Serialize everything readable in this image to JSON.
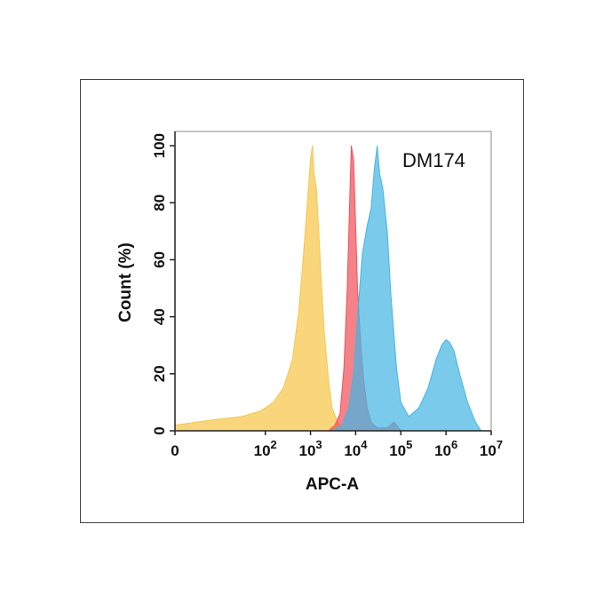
{
  "chart_data": {
    "type": "area",
    "title": "",
    "annotation": "DM174",
    "xlabel": "APC-A",
    "ylabel": "Count  (%)",
    "xscale": "log",
    "xlim": [
      1,
      10000000
    ],
    "ylim": [
      0,
      105
    ],
    "x_ticks": [
      {
        "value": 1,
        "base": "0",
        "exp": ""
      },
      {
        "value": 100,
        "base": "10",
        "exp": "2"
      },
      {
        "value": 1000,
        "base": "10",
        "exp": "3"
      },
      {
        "value": 10000,
        "base": "10",
        "exp": "4"
      },
      {
        "value": 100000,
        "base": "10",
        "exp": "5"
      },
      {
        "value": 1000000,
        "base": "10",
        "exp": "6"
      },
      {
        "value": 10000000,
        "base": "10",
        "exp": "7"
      }
    ],
    "y_ticks": [
      0,
      20,
      40,
      60,
      80,
      100
    ],
    "grid": false,
    "legend": "none",
    "series": [
      {
        "color": "#f7c64a",
        "x": [
          1,
          8,
          30,
          80,
          150,
          250,
          400,
          550,
          700,
          850,
          1000,
          1100,
          1200,
          1350,
          1500,
          1700,
          2000,
          2500,
          3000,
          4000,
          5000,
          6500
        ],
        "y": [
          2,
          4,
          5,
          7,
          10,
          15,
          25,
          42,
          62,
          80,
          95,
          100,
          90,
          85,
          72,
          55,
          35,
          18,
          8,
          3,
          1,
          0
        ]
      },
      {
        "color": "#f0525a",
        "x": [
          2500,
          3500,
          4500,
          5500,
          6500,
          7500,
          8000,
          9000,
          10000,
          11000,
          13000,
          15000,
          18000,
          22000,
          30000,
          50000,
          70000,
          80000,
          100000
        ],
        "y": [
          0,
          2,
          6,
          22,
          50,
          85,
          100,
          95,
          72,
          50,
          30,
          18,
          8,
          3,
          1,
          1,
          3,
          2,
          0
        ]
      },
      {
        "color": "#45b6e3",
        "x": [
          3000,
          5000,
          7000,
          9000,
          11000,
          14000,
          18000,
          22000,
          26000,
          30000,
          34000,
          40000,
          50000,
          60000,
          80000,
          100000,
          150000,
          250000,
          400000,
          600000,
          800000,
          1000000,
          1200000,
          1500000,
          2000000,
          3000000,
          4500000,
          6000000
        ],
        "y": [
          0,
          2,
          8,
          20,
          40,
          62,
          72,
          78,
          92,
          100,
          90,
          85,
          70,
          48,
          22,
          10,
          5,
          8,
          15,
          25,
          30,
          32,
          31,
          28,
          20,
          10,
          3,
          0
        ]
      }
    ]
  }
}
